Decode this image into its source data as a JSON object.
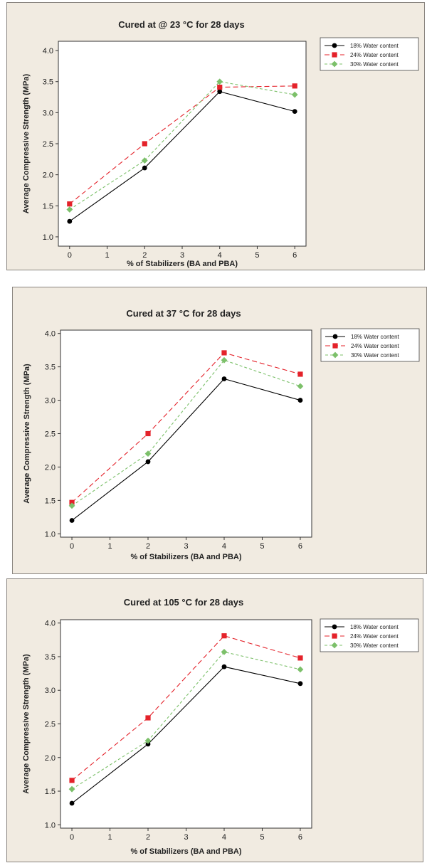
{
  "colors": {
    "s18": "#000000",
    "s24": "#e4222a",
    "s30": "#7cc06a",
    "panel_bg": "#f1ebe1"
  },
  "chart_data": [
    {
      "type": "line",
      "title": "Cured at @ 23 °C for 28 days",
      "xlabel": "% of Stabilizers (BA and PBA)",
      "ylabel": "Average Compressive Strength (MPa)",
      "xlim": [
        -0.3,
        6.3
      ],
      "ylim": [
        0.85,
        4.15
      ],
      "xticks": [
        "0",
        "1",
        "2",
        "3",
        "4",
        "5",
        "6"
      ],
      "yticks": [
        "1.0",
        "1.5",
        "2.0",
        "2.5",
        "3.0",
        "3.5",
        "4.0"
      ],
      "x": [
        0,
        2,
        4,
        6
      ],
      "legend_position": "right",
      "series": [
        {
          "name": "18% Water content",
          "values": [
            1.25,
            2.11,
            3.34,
            3.02
          ],
          "marker": "circle",
          "dash": "solid"
        },
        {
          "name": "24% Water content",
          "values": [
            1.53,
            2.5,
            3.41,
            3.43
          ],
          "marker": "square",
          "dash": "long-dash"
        },
        {
          "name": "30% Water content",
          "values": [
            1.44,
            2.23,
            3.5,
            3.29
          ],
          "marker": "diamond",
          "dash": "short-dash"
        }
      ]
    },
    {
      "type": "line",
      "title": "Cured at 37 °C  for 28 days",
      "xlabel": "% of Stabilizers (BA and PBA)",
      "ylabel": "Average Compressive Strength (MPa)",
      "xlim": [
        -0.3,
        6.3
      ],
      "ylim": [
        0.95,
        4.05
      ],
      "xticks": [
        "0",
        "1",
        "2",
        "3",
        "4",
        "5",
        "6"
      ],
      "yticks": [
        "1.0",
        "1.5",
        "2.0",
        "2.5",
        "3.0",
        "3.5",
        "4.0"
      ],
      "x": [
        0,
        2,
        4,
        6
      ],
      "legend_position": "right",
      "series": [
        {
          "name": "18% Water content",
          "values": [
            1.2,
            2.08,
            3.32,
            3.0
          ],
          "marker": "circle",
          "dash": "solid"
        },
        {
          "name": "24% Water content",
          "values": [
            1.47,
            2.5,
            3.71,
            3.39
          ],
          "marker": "square",
          "dash": "long-dash"
        },
        {
          "name": "30% Water content",
          "values": [
            1.42,
            2.2,
            3.6,
            3.21
          ],
          "marker": "diamond",
          "dash": "short-dash"
        }
      ]
    },
    {
      "type": "line",
      "title": "Cured at 105 °C for 28 days",
      "xlabel": "% of Stabilizers (BA and PBA)",
      "ylabel": "Average Compressive Strength (MPa)",
      "xlim": [
        -0.3,
        6.3
      ],
      "ylim": [
        0.95,
        4.05
      ],
      "xticks": [
        "0",
        "1",
        "2",
        "3",
        "4",
        "5",
        "6"
      ],
      "yticks": [
        "1.0",
        "1.5",
        "2.0",
        "2.5",
        "3.0",
        "3.5",
        "4.0"
      ],
      "x": [
        0,
        2,
        4,
        6
      ],
      "legend_position": "right",
      "series": [
        {
          "name": "18% Water content",
          "values": [
            1.32,
            2.2,
            3.35,
            3.1
          ],
          "marker": "circle",
          "dash": "solid"
        },
        {
          "name": "24% Water content",
          "values": [
            1.66,
            2.59,
            3.81,
            3.48
          ],
          "marker": "square",
          "dash": "long-dash"
        },
        {
          "name": "30% Water content",
          "values": [
            1.53,
            2.25,
            3.57,
            3.31
          ],
          "marker": "diamond",
          "dash": "short-dash"
        }
      ]
    }
  ]
}
